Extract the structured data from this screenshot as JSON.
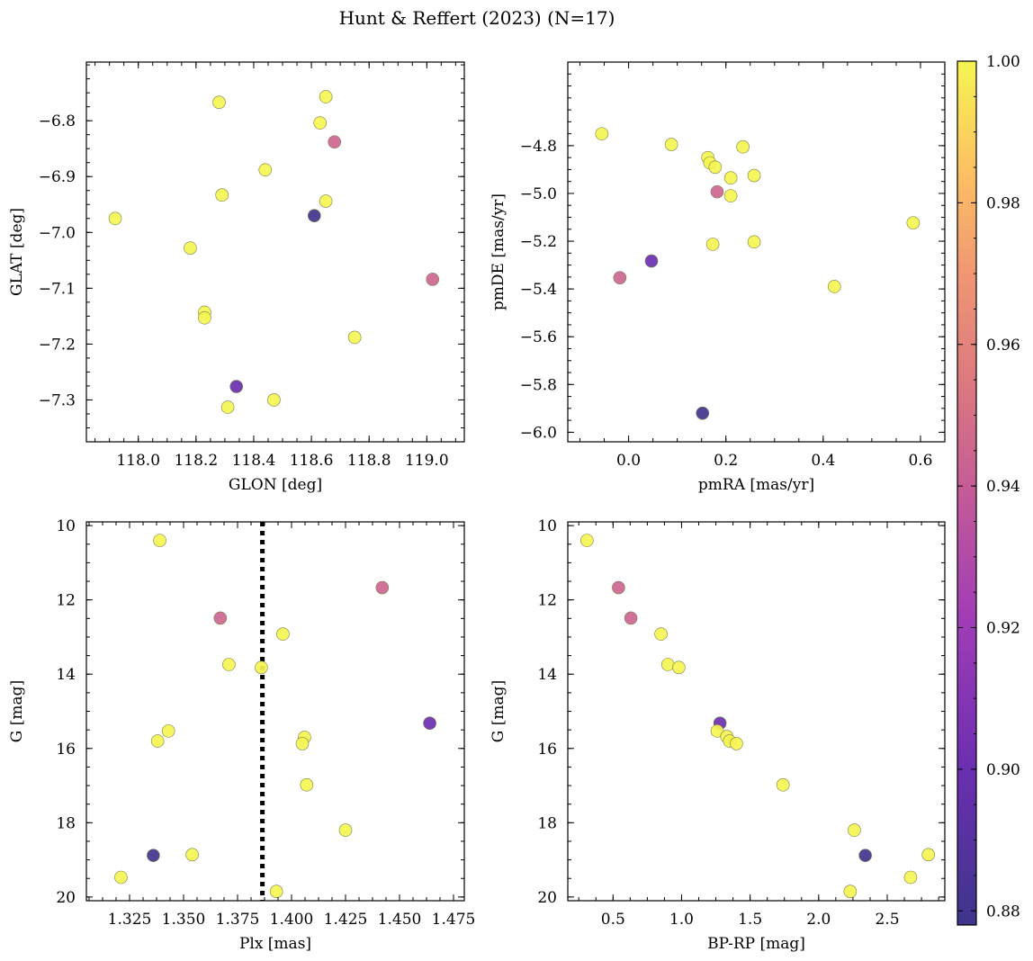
{
  "figure": {
    "title": "Hunt & Reffert (2023) (N=17)"
  },
  "colormap": {
    "name": "plasma",
    "range": [
      0.878,
      1.0
    ],
    "ticks": [
      0.88,
      0.9,
      0.92,
      0.94,
      0.96,
      0.98,
      1.0
    ],
    "tick_labels": [
      "0.88",
      "0.90",
      "0.92",
      "0.94",
      "0.96",
      "0.98",
      "1.00"
    ]
  },
  "chart_data": [
    {
      "type": "scatter",
      "xlabel": "GLON [deg]",
      "ylabel": "GLAT [deg]",
      "xlim": [
        117.82,
        119.13
      ],
      "ylim": [
        -7.375,
        -6.695
      ],
      "xticks": [
        118.0,
        118.2,
        118.4,
        118.6,
        118.8,
        119.0
      ],
      "xtick_labels": [
        "118.0",
        "118.2",
        "118.4",
        "118.6",
        "118.8",
        "119.0"
      ],
      "yticks": [
        -6.8,
        -6.9,
        -7.0,
        -7.1,
        -7.2,
        -7.3
      ],
      "ytick_labels": [
        "−6.8",
        "−6.9",
        "−7.0",
        "−7.1",
        "−7.2",
        "−7.3"
      ],
      "points": [
        {
          "x": 117.92,
          "y": -6.975,
          "c": 1.0
        },
        {
          "x": 118.18,
          "y": -7.028,
          "c": 1.0
        },
        {
          "x": 118.23,
          "y": -7.143,
          "c": 1.0
        },
        {
          "x": 118.23,
          "y": -7.153,
          "c": 1.0
        },
        {
          "x": 118.28,
          "y": -6.767,
          "c": 1.0
        },
        {
          "x": 118.29,
          "y": -6.933,
          "c": 1.0
        },
        {
          "x": 118.31,
          "y": -7.313,
          "c": 1.0
        },
        {
          "x": 118.34,
          "y": -7.276,
          "c": 0.9
        },
        {
          "x": 118.44,
          "y": -6.888,
          "c": 1.0
        },
        {
          "x": 118.47,
          "y": -7.3,
          "c": 1.0
        },
        {
          "x": 118.61,
          "y": -6.97,
          "c": 0.88
        },
        {
          "x": 118.63,
          "y": -6.804,
          "c": 1.0
        },
        {
          "x": 118.65,
          "y": -6.757,
          "c": 1.0
        },
        {
          "x": 118.65,
          "y": -6.944,
          "c": 1.0
        },
        {
          "x": 118.68,
          "y": -6.838,
          "c": 0.945
        },
        {
          "x": 118.75,
          "y": -7.188,
          "c": 1.0
        },
        {
          "x": 119.02,
          "y": -7.084,
          "c": 0.945
        }
      ]
    },
    {
      "type": "scatter",
      "xlabel": "pmRA [mas/yr]",
      "ylabel": "pmDE [mas/yr]",
      "xlim": [
        -0.125,
        0.65
      ],
      "ylim": [
        -6.04,
        -4.45
      ],
      "xticks": [
        0.0,
        0.2,
        0.4,
        0.6
      ],
      "xtick_labels": [
        "0.0",
        "0.2",
        "0.4",
        "0.6"
      ],
      "yticks": [
        -4.8,
        -5.0,
        -5.2,
        -5.4,
        -5.6,
        -5.8,
        -6.0
      ],
      "ytick_labels": [
        "−4.8",
        "−5.0",
        "−5.2",
        "−5.4",
        "−5.6",
        "−5.8",
        "−6.0"
      ],
      "points": [
        {
          "x": -0.055,
          "y": -4.75,
          "c": 1.0
        },
        {
          "x": 0.088,
          "y": -4.795,
          "c": 1.0
        },
        {
          "x": 0.163,
          "y": -4.85,
          "c": 1.0
        },
        {
          "x": 0.167,
          "y": -4.872,
          "c": 1.0
        },
        {
          "x": 0.178,
          "y": -4.89,
          "c": 1.0
        },
        {
          "x": 0.235,
          "y": -4.805,
          "c": 1.0
        },
        {
          "x": 0.21,
          "y": -4.935,
          "c": 1.0
        },
        {
          "x": 0.258,
          "y": -4.925,
          "c": 1.0
        },
        {
          "x": 0.21,
          "y": -5.01,
          "c": 1.0
        },
        {
          "x": 0.182,
          "y": -4.993,
          "c": 0.945
        },
        {
          "x": 0.173,
          "y": -5.213,
          "c": 1.0
        },
        {
          "x": 0.258,
          "y": -5.203,
          "c": 1.0
        },
        {
          "x": 0.585,
          "y": -5.123,
          "c": 1.0
        },
        {
          "x": 0.047,
          "y": -5.283,
          "c": 0.9
        },
        {
          "x": -0.018,
          "y": -5.353,
          "c": 0.945
        },
        {
          "x": 0.423,
          "y": -5.39,
          "c": 1.0
        },
        {
          "x": 0.152,
          "y": -5.92,
          "c": 0.88
        }
      ]
    },
    {
      "type": "scatter",
      "xlabel": "Plx [mas]",
      "ylabel": "G [mag]",
      "xlim": [
        1.305,
        1.48
      ],
      "ylim": [
        20.1,
        9.9
      ],
      "y_inverted": true,
      "vline": {
        "x": 1.3865,
        "style": "dotted"
      },
      "xticks": [
        1.325,
        1.35,
        1.375,
        1.4,
        1.425,
        1.45,
        1.475
      ],
      "xtick_labels": [
        "1.325",
        "1.350",
        "1.375",
        "1.400",
        "1.425",
        "1.450",
        "1.475"
      ],
      "yticks": [
        10,
        12,
        14,
        16,
        18,
        20
      ],
      "ytick_labels": [
        "10",
        "12",
        "14",
        "16",
        "18",
        "20"
      ],
      "points": [
        {
          "x": 1.339,
          "y": 10.4,
          "c": 1.0
        },
        {
          "x": 1.442,
          "y": 11.67,
          "c": 0.945
        },
        {
          "x": 1.367,
          "y": 12.49,
          "c": 0.945
        },
        {
          "x": 1.396,
          "y": 12.92,
          "c": 1.0
        },
        {
          "x": 1.371,
          "y": 13.74,
          "c": 1.0
        },
        {
          "x": 1.386,
          "y": 13.82,
          "c": 1.0
        },
        {
          "x": 1.464,
          "y": 15.32,
          "c": 0.9
        },
        {
          "x": 1.343,
          "y": 15.53,
          "c": 1.0
        },
        {
          "x": 1.338,
          "y": 15.8,
          "c": 1.0
        },
        {
          "x": 1.406,
          "y": 15.7,
          "c": 1.0
        },
        {
          "x": 1.405,
          "y": 15.87,
          "c": 1.0
        },
        {
          "x": 1.407,
          "y": 16.98,
          "c": 1.0
        },
        {
          "x": 1.425,
          "y": 18.2,
          "c": 1.0
        },
        {
          "x": 1.336,
          "y": 18.88,
          "c": 0.88
        },
        {
          "x": 1.354,
          "y": 18.86,
          "c": 1.0
        },
        {
          "x": 1.321,
          "y": 19.47,
          "c": 1.0
        },
        {
          "x": 1.393,
          "y": 19.85,
          "c": 1.0
        }
      ]
    },
    {
      "type": "scatter",
      "xlabel": "BP-RP [mag]",
      "ylabel": "G [mag]",
      "xlim": [
        0.17,
        2.92
      ],
      "ylim": [
        20.1,
        9.9
      ],
      "y_inverted": true,
      "xticks": [
        0.5,
        1.0,
        1.5,
        2.0,
        2.5
      ],
      "xtick_labels": [
        "0.5",
        "1.0",
        "1.5",
        "2.0",
        "2.5"
      ],
      "yticks": [
        10,
        12,
        14,
        16,
        18,
        20
      ],
      "ytick_labels": [
        "10",
        "12",
        "14",
        "16",
        "18",
        "20"
      ],
      "points": [
        {
          "x": 0.31,
          "y": 10.4,
          "c": 1.0
        },
        {
          "x": 0.54,
          "y": 11.67,
          "c": 0.945
        },
        {
          "x": 0.63,
          "y": 12.49,
          "c": 0.945
        },
        {
          "x": 0.85,
          "y": 12.92,
          "c": 1.0
        },
        {
          "x": 0.9,
          "y": 13.74,
          "c": 1.0
        },
        {
          "x": 0.98,
          "y": 13.82,
          "c": 1.0
        },
        {
          "x": 1.28,
          "y": 15.32,
          "c": 0.9
        },
        {
          "x": 1.26,
          "y": 15.53,
          "c": 1.0
        },
        {
          "x": 1.33,
          "y": 15.68,
          "c": 1.0
        },
        {
          "x": 1.35,
          "y": 15.8,
          "c": 1.0
        },
        {
          "x": 1.4,
          "y": 15.87,
          "c": 1.0
        },
        {
          "x": 1.74,
          "y": 16.98,
          "c": 1.0
        },
        {
          "x": 2.26,
          "y": 18.2,
          "c": 1.0
        },
        {
          "x": 2.34,
          "y": 18.88,
          "c": 0.88
        },
        {
          "x": 2.8,
          "y": 18.86,
          "c": 1.0
        },
        {
          "x": 2.67,
          "y": 19.47,
          "c": 1.0
        },
        {
          "x": 2.23,
          "y": 19.85,
          "c": 1.0
        }
      ]
    }
  ]
}
